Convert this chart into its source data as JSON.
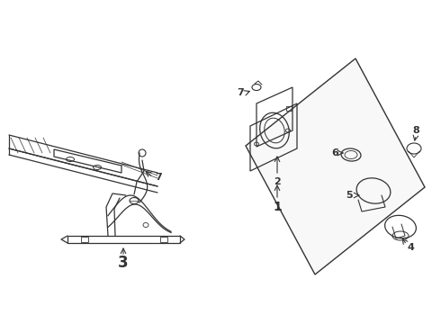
{
  "bg_color": "#ffffff",
  "line_color": "#333333",
  "fig_width": 4.9,
  "fig_height": 3.6,
  "dpi": 100,
  "label_fontsize": 10,
  "label_fontsize_small": 8,
  "lw": 0.8
}
